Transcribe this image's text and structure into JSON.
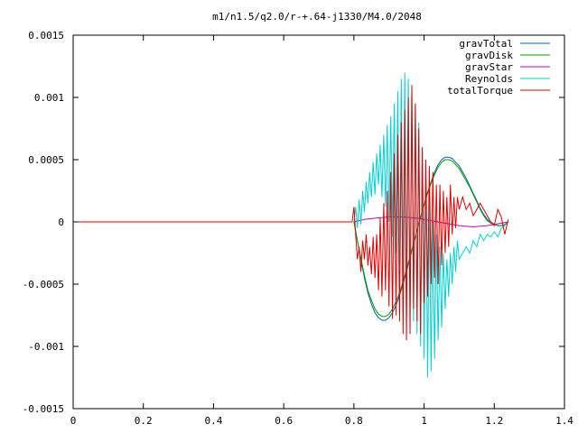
{
  "chart_data": {
    "type": "line",
    "title": "m1/n1.5/q2.0/r-+.64-j1330/M4.0/2048",
    "xlabel": "",
    "ylabel": "",
    "xlim": [
      0,
      1.4
    ],
    "ylim": [
      -0.0015,
      0.0015
    ],
    "grid": false,
    "legend_position": "top-right",
    "x_ticks": [
      0,
      0.2,
      0.4,
      0.6,
      0.8,
      1,
      1.2,
      1.4
    ],
    "x_tick_labels": [
      "0",
      "0.2",
      "0.4",
      "0.6",
      "0.8",
      "1",
      "1.2",
      "1.4"
    ],
    "y_ticks": [
      0.0015,
      0.001,
      0.0005,
      0,
      -0.0005,
      -0.001,
      -0.0015
    ],
    "y_tick_labels": [
      "0.0015",
      "0.001",
      "0.0005",
      "0",
      "-0.0005",
      "-0.001",
      "-0.0015"
    ],
    "series": [
      {
        "name": "gravTotal",
        "color": "#0060ad",
        "x": [
          0.8,
          0.81,
          0.82,
          0.83,
          0.84,
          0.85,
          0.86,
          0.87,
          0.88,
          0.89,
          0.9,
          0.91,
          0.92,
          0.93,
          0.94,
          0.95,
          0.96,
          0.97,
          0.98,
          0.99,
          1.0,
          1.01,
          1.02,
          1.03,
          1.04,
          1.05,
          1.06,
          1.07,
          1.08,
          1.09,
          1.1,
          1.11,
          1.12,
          1.13,
          1.14,
          1.15,
          1.16,
          1.17,
          1.18,
          1.19,
          1.2,
          1.21,
          1.22,
          1.23,
          1.24
        ],
        "y": [
          0.0,
          -0.00015,
          -0.0003,
          -0.00045,
          -0.00057,
          -0.00066,
          -0.00073,
          -0.00077,
          -0.00079,
          -0.00079,
          -0.00077,
          -0.00073,
          -0.00067,
          -0.00059,
          -0.0005,
          -0.0004,
          -0.00029,
          -0.00018,
          -7e-05,
          4e-05,
          0.00014,
          0.00024,
          0.00032,
          0.0004,
          0.00046,
          0.0005,
          0.00052,
          0.00052,
          0.00051,
          0.00048,
          0.00045,
          0.0004,
          0.00035,
          0.00029,
          0.00023,
          0.00017,
          0.00011,
          6e-05,
          2e-05,
          0.0,
          -2e-05,
          -3e-05,
          -3e-05,
          -2e-05,
          0.0
        ]
      },
      {
        "name": "gravDisk",
        "color": "#009e00",
        "x": [
          0.8,
          0.81,
          0.82,
          0.83,
          0.84,
          0.85,
          0.86,
          0.87,
          0.88,
          0.89,
          0.9,
          0.91,
          0.92,
          0.93,
          0.94,
          0.95,
          0.96,
          0.97,
          0.98,
          0.99,
          1.0,
          1.01,
          1.02,
          1.03,
          1.04,
          1.05,
          1.06,
          1.07,
          1.08,
          1.09,
          1.1,
          1.11,
          1.12,
          1.13,
          1.14,
          1.15,
          1.16,
          1.17,
          1.18,
          1.19,
          1.2,
          1.21,
          1.22,
          1.23,
          1.24
        ],
        "y": [
          0.0,
          -0.00015,
          -0.00029,
          -0.00043,
          -0.00055,
          -0.00063,
          -0.0007,
          -0.00074,
          -0.00076,
          -0.00076,
          -0.00074,
          -0.0007,
          -0.00064,
          -0.00057,
          -0.00048,
          -0.00038,
          -0.00028,
          -0.00017,
          -7e-05,
          4e-05,
          0.00014,
          0.00023,
          0.00031,
          0.00038,
          0.00044,
          0.00048,
          0.0005,
          0.0005,
          0.00049,
          0.00046,
          0.00043,
          0.00038,
          0.00033,
          0.00028,
          0.00022,
          0.00016,
          0.0001,
          5e-05,
          1e-05,
          -1e-05,
          -2e-05,
          -3e-05,
          -3e-05,
          -2e-05,
          0.0
        ]
      },
      {
        "name": "gravStar",
        "color": "#c000c0",
        "x": [
          0.8,
          0.83,
          0.86,
          0.9,
          0.94,
          0.98,
          1.02,
          1.06,
          1.1,
          1.14,
          1.18,
          1.22,
          1.24
        ],
        "y": [
          0.0,
          2e-05,
          3e-05,
          4e-05,
          4e-05,
          3e-05,
          1e-05,
          -1e-05,
          -3e-05,
          -4e-05,
          -3e-05,
          -1e-05,
          0.0
        ]
      },
      {
        "name": "Reynolds",
        "color": "#00d0d0",
        "x": [
          0.8,
          0.805,
          0.81,
          0.815,
          0.82,
          0.825,
          0.83,
          0.835,
          0.84,
          0.845,
          0.85,
          0.855,
          0.86,
          0.865,
          0.87,
          0.875,
          0.88,
          0.885,
          0.89,
          0.895,
          0.9,
          0.905,
          0.91,
          0.915,
          0.92,
          0.925,
          0.93,
          0.935,
          0.94,
          0.945,
          0.95,
          0.955,
          0.96,
          0.965,
          0.97,
          0.975,
          0.98,
          0.985,
          0.99,
          0.995,
          1.0,
          1.005,
          1.01,
          1.015,
          1.02,
          1.025,
          1.03,
          1.035,
          1.04,
          1.045,
          1.05,
          1.055,
          1.06,
          1.065,
          1.07,
          1.075,
          1.08,
          1.085,
          1.09,
          1.095,
          1.1,
          1.11,
          1.12,
          1.13,
          1.14,
          1.15,
          1.16,
          1.17,
          1.18,
          1.19,
          1.2,
          1.21,
          1.22,
          1.23,
          1.24
        ],
        "y": [
          0.0,
          0.00012,
          -5e-05,
          0.00018,
          -2e-05,
          0.00025,
          8e-05,
          0.00032,
          0.00015,
          0.0004,
          0.0002,
          0.00048,
          0.00022,
          0.00055,
          0.0003,
          0.00062,
          0.0002,
          0.0007,
          0.00012,
          0.00078,
          0.0,
          0.00085,
          -0.00012,
          0.00095,
          -0.00025,
          0.00105,
          -0.00035,
          0.00115,
          -0.0004,
          0.0012,
          -0.0005,
          0.00115,
          -0.00065,
          0.00105,
          -0.0008,
          0.00095,
          -0.0009,
          0.0008,
          -0.001,
          0.0006,
          -0.0011,
          0.0004,
          -0.00125,
          0.0002,
          -0.0012,
          0.0,
          -0.0011,
          -0.0001,
          -0.00095,
          -0.0002,
          -0.00085,
          -0.00025,
          -0.0007,
          -0.0003,
          -0.0006,
          -0.00025,
          -0.0005,
          -0.0002,
          -0.0004,
          -0.00015,
          -0.0003,
          -0.00025,
          -0.0002,
          -0.00025,
          -0.00015,
          -0.0002,
          -0.0001,
          -0.00015,
          -0.0001,
          -0.00012,
          -8e-05,
          -0.00012,
          -5e-05,
          -3e-05,
          0.0
        ]
      },
      {
        "name": "totalTorque",
        "color": "#e00000",
        "x": [
          0.0,
          0.795,
          0.8,
          0.805,
          0.81,
          0.815,
          0.82,
          0.825,
          0.83,
          0.835,
          0.84,
          0.845,
          0.85,
          0.855,
          0.86,
          0.865,
          0.87,
          0.875,
          0.88,
          0.885,
          0.89,
          0.895,
          0.9,
          0.905,
          0.91,
          0.915,
          0.92,
          0.925,
          0.93,
          0.935,
          0.94,
          0.945,
          0.95,
          0.955,
          0.96,
          0.965,
          0.97,
          0.975,
          0.98,
          0.985,
          0.99,
          0.995,
          1.0,
          1.005,
          1.01,
          1.015,
          1.02,
          1.025,
          1.03,
          1.035,
          1.04,
          1.045,
          1.05,
          1.055,
          1.06,
          1.065,
          1.07,
          1.075,
          1.08,
          1.085,
          1.09,
          1.095,
          1.1,
          1.11,
          1.12,
          1.13,
          1.14,
          1.15,
          1.16,
          1.17,
          1.18,
          1.19,
          1.2,
          1.21,
          1.22,
          1.23,
          1.24
        ],
        "y": [
          0.0,
          0.0,
          0.00012,
          -0.0001,
          -0.0003,
          -0.0002,
          -0.0004,
          -0.00015,
          -0.0003,
          -0.0001,
          -0.00035,
          -0.0002,
          -0.00042,
          -0.00012,
          -0.00045,
          -0.0001,
          -0.00055,
          3e-05,
          -0.0006,
          0.00015,
          -0.00055,
          0.00025,
          -0.00068,
          0.0004,
          -0.00078,
          0.00055,
          -0.00075,
          0.0007,
          -0.0008,
          0.0008,
          -0.0009,
          0.0009,
          -0.00095,
          0.001,
          -0.0009,
          0.0011,
          -0.0007,
          0.00095,
          -0.0008,
          0.00075,
          -0.0009,
          0.0006,
          -0.00065,
          0.0005,
          -0.0006,
          0.00045,
          -0.0005,
          0.0004,
          -0.00045,
          0.0003,
          -0.0005,
          0.0003,
          -0.00035,
          0.00025,
          -0.00025,
          0.0002,
          -0.0002,
          0.0003,
          -0.0001,
          0.0002,
          -5e-05,
          0.0002,
          0.0001,
          0.0002,
          0.0001,
          0.00015,
          5e-05,
          0.0001,
          0.00015,
          0.0001,
          5e-05,
          0.0,
          -3e-05,
          0.0001,
          4e-05,
          -0.0001,
          2e-05
        ]
      }
    ]
  }
}
